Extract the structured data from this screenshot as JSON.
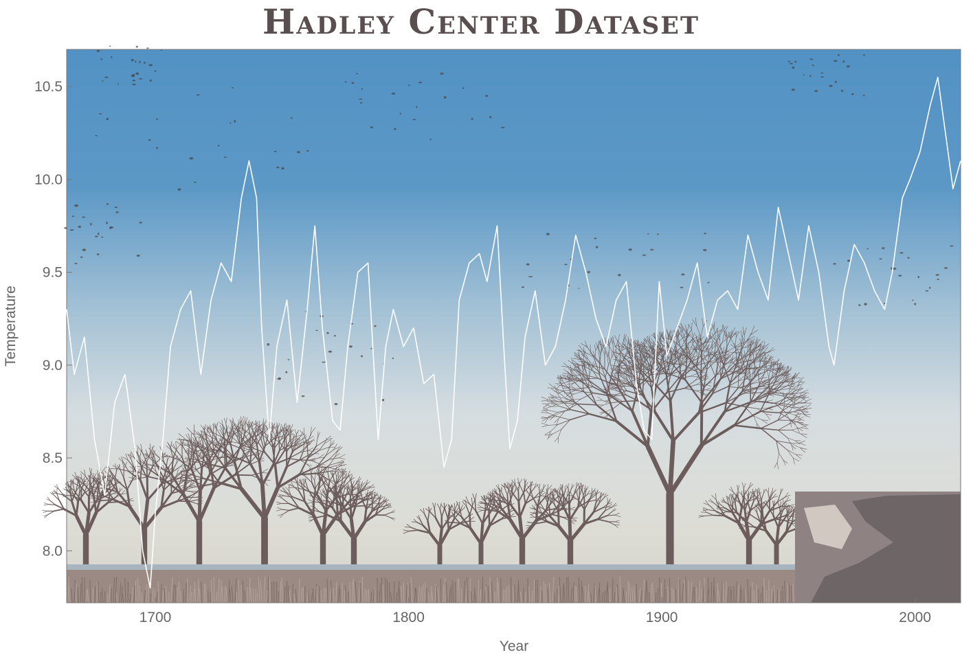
{
  "chart_data": {
    "type": "line",
    "title": "Hadley Center Dataset",
    "xlabel": "Year",
    "ylabel": "Temperature",
    "xlim": [
      1665,
      2018
    ],
    "ylim": [
      7.72,
      10.7
    ],
    "xticks": [
      1700,
      1800,
      1900,
      2000
    ],
    "yticks": [
      8.0,
      8.5,
      9.0,
      9.5,
      10.0,
      10.5
    ],
    "ytick_labels": [
      "8.0",
      "8.5",
      "9.0",
      "9.5",
      "10.0",
      "10.5"
    ],
    "grid": false,
    "legend": "none",
    "background": "photograph of winter trees and birds under a blue sky",
    "series": [
      {
        "color": "#ffffff",
        "x": [
          1665,
          1668,
          1672,
          1676,
          1680,
          1684,
          1688,
          1692,
          1695,
          1698,
          1700,
          1703,
          1706,
          1710,
          1714,
          1718,
          1722,
          1726,
          1730,
          1734,
          1737,
          1740,
          1742,
          1745,
          1748,
          1752,
          1756,
          1760,
          1763,
          1766,
          1770,
          1773,
          1776,
          1780,
          1784,
          1788,
          1791,
          1794,
          1798,
          1802,
          1806,
          1810,
          1814,
          1817,
          1820,
          1824,
          1828,
          1831,
          1835,
          1838,
          1840,
          1843,
          1846,
          1850,
          1854,
          1858,
          1862,
          1866,
          1870,
          1874,
          1878,
          1882,
          1886,
          1890,
          1893,
          1896,
          1899,
          1902,
          1906,
          1910,
          1914,
          1918,
          1922,
          1926,
          1930,
          1934,
          1938,
          1942,
          1946,
          1950,
          1954,
          1958,
          1962,
          1966,
          1968,
          1972,
          1976,
          1980,
          1984,
          1988,
          1991,
          1995,
          1998,
          2002,
          2006,
          2009,
          2012,
          2015,
          2018
        ],
        "values": [
          9.3,
          8.95,
          9.15,
          8.6,
          8.3,
          8.8,
          8.95,
          8.55,
          8.0,
          7.8,
          8.2,
          8.6,
          9.1,
          9.3,
          9.4,
          8.95,
          9.35,
          9.55,
          9.45,
          9.9,
          10.1,
          9.9,
          9.2,
          8.6,
          9.1,
          9.35,
          8.8,
          9.3,
          9.75,
          9.2,
          8.7,
          8.65,
          9.1,
          9.5,
          9.55,
          8.6,
          9.1,
          9.3,
          9.1,
          9.2,
          8.9,
          8.95,
          8.45,
          8.6,
          9.35,
          9.55,
          9.6,
          9.45,
          9.75,
          9.0,
          8.55,
          8.7,
          9.15,
          9.4,
          9.0,
          9.1,
          9.35,
          9.7,
          9.5,
          9.25,
          9.1,
          9.35,
          9.45,
          8.9,
          8.65,
          8.6,
          9.45,
          9.05,
          9.2,
          9.35,
          9.55,
          9.15,
          9.35,
          9.4,
          9.3,
          9.7,
          9.5,
          9.35,
          9.85,
          9.6,
          9.35,
          9.75,
          9.5,
          9.1,
          9.0,
          9.4,
          9.65,
          9.55,
          9.4,
          9.3,
          9.5,
          9.9,
          10.0,
          10.15,
          10.4,
          10.55,
          10.25,
          9.95,
          10.1
        ]
      }
    ]
  }
}
